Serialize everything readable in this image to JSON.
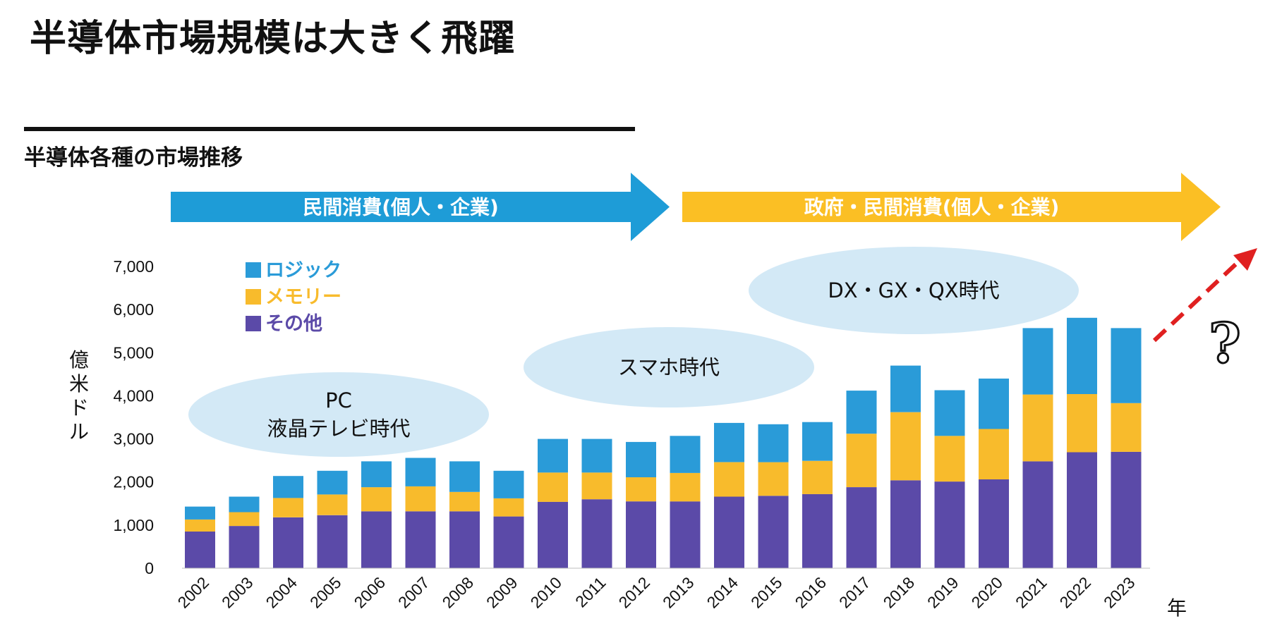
{
  "page": {
    "title": "半導体市場規模は大きく飛躍",
    "subtitle": "半導体各種の市場推移"
  },
  "banners": [
    {
      "label": "民間消費(個人・企業)",
      "color": "#1e9cd7"
    },
    {
      "label": "政府・民間消費(個人・企業)",
      "color": "#fbbf24"
    }
  ],
  "eras": [
    {
      "lines": [
        "PC",
        "液晶テレビ時代"
      ]
    },
    {
      "lines": [
        "スマホ時代"
      ]
    },
    {
      "lines": [
        "DX・GX・QX時代"
      ]
    }
  ],
  "question_mark": "?",
  "colors": {
    "logic": "#2a9bd8",
    "memory": "#f8bb2c",
    "other": "#5b4aa8",
    "era_bubble": "#d3e9f6",
    "trend_arrow": "#e02020"
  },
  "chart_data": {
    "type": "bar",
    "stacked": true,
    "title": "半導体各種の市場推移",
    "ylabel": "億米ドル",
    "xlabel": "年",
    "ylim": [
      0,
      7000
    ],
    "yticks": [
      0,
      1000,
      2000,
      3000,
      4000,
      5000,
      6000,
      7000
    ],
    "ytick_labels": [
      "0",
      "1,000",
      "2,000",
      "3,000",
      "4,000",
      "5,000",
      "6,000",
      "7,000"
    ],
    "categories": [
      "2002",
      "2003",
      "2004",
      "2005",
      "2006",
      "2007",
      "2008",
      "2009",
      "2010",
      "2011",
      "2012",
      "2013",
      "2014",
      "2015",
      "2016",
      "2017",
      "2018",
      "2019",
      "2020",
      "2021",
      "2022",
      "2023"
    ],
    "series": [
      {
        "name": "その他",
        "key": "other",
        "values": [
          850,
          980,
          1180,
          1230,
          1320,
          1320,
          1320,
          1200,
          1540,
          1600,
          1550,
          1550,
          1660,
          1680,
          1720,
          1880,
          2040,
          2010,
          2060,
          2480,
          2690,
          2700
        ]
      },
      {
        "name": "メモリー",
        "key": "memory",
        "values": [
          280,
          320,
          450,
          480,
          560,
          580,
          450,
          420,
          680,
          620,
          560,
          660,
          800,
          780,
          770,
          1240,
          1580,
          1060,
          1170,
          1550,
          1350,
          1130
        ]
      },
      {
        "name": "ロジック",
        "key": "logic",
        "values": [
          300,
          360,
          510,
          550,
          600,
          660,
          710,
          640,
          780,
          780,
          820,
          860,
          910,
          880,
          900,
          1000,
          1080,
          1060,
          1170,
          1540,
          1770,
          1740
        ]
      }
    ],
    "legend": {
      "placement": "top-left",
      "order": [
        "ロジック",
        "メモリー",
        "その他"
      ]
    },
    "grid": false
  }
}
